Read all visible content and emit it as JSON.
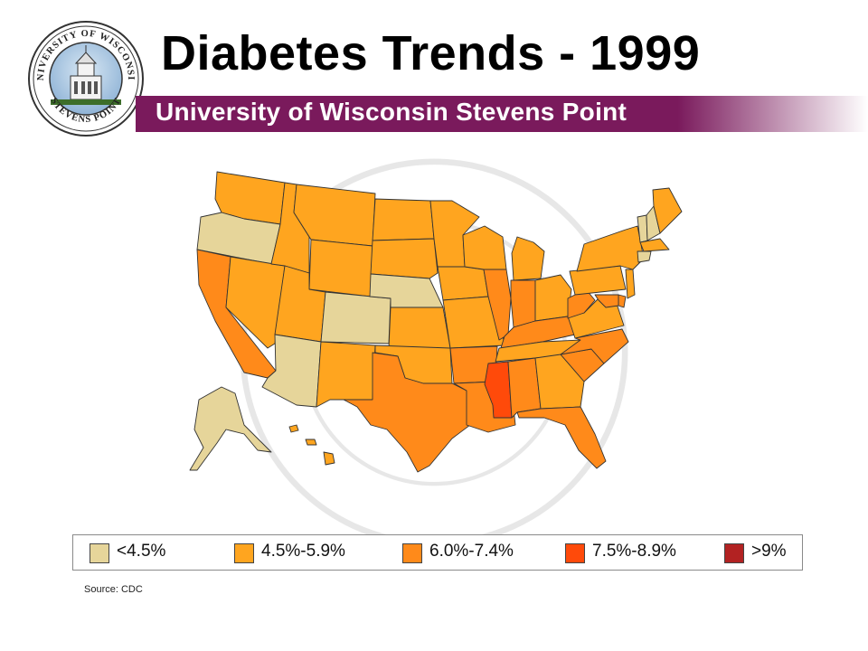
{
  "header": {
    "title": "Diabetes Trends - 1999",
    "subtitle": "University of Wisconsin Stevens Point",
    "seal_text": "UNIVERSITY OF WISCONSIN STEVENS POINT"
  },
  "colors": {
    "band_purple": "#7a1a5c",
    "lt_4_5": "#e6d59a",
    "p4_5_5_9": "#ffa51f",
    "p6_0_7_4": "#ff8a1a",
    "p7_5_8_9": "#ff4a0a",
    "gt_9": "#b22222"
  },
  "legend": {
    "items": [
      {
        "label": "<4.5%",
        "color": "#e6d59a"
      },
      {
        "label": "4.5%-5.9%",
        "color": "#ffa51f"
      },
      {
        "label": "6.0%-7.4%",
        "color": "#ff8a1a"
      },
      {
        "label": "7.5%-8.9%",
        "color": "#ff4a0a"
      },
      {
        "label": ">9%",
        "color": "#b22222"
      }
    ]
  },
  "source": "Source: CDC",
  "map_data": {
    "category_by_state": {
      "WA": "4.5%-5.9%",
      "OR": "<4.5%",
      "CA": "6.0%-7.4%",
      "NV": "4.5%-5.9%",
      "ID": "4.5%-5.9%",
      "MT": "4.5%-5.9%",
      "WY": "4.5%-5.9%",
      "UT": "4.5%-5.9%",
      "AZ": "<4.5%",
      "CO": "<4.5%",
      "NM": "4.5%-5.9%",
      "ND": "4.5%-5.9%",
      "SD": "4.5%-5.9%",
      "NE": "<4.5%",
      "KS": "4.5%-5.9%",
      "OK": "4.5%-5.9%",
      "TX": "6.0%-7.4%",
      "MN": "4.5%-5.9%",
      "IA": "4.5%-5.9%",
      "MO": "4.5%-5.9%",
      "AR": "6.0%-7.4%",
      "LA": "6.0%-7.4%",
      "WI": "4.5%-5.9%",
      "IL": "6.0%-7.4%",
      "MI": "4.5%-5.9%",
      "IN": "6.0%-7.4%",
      "OH": "4.5%-5.9%",
      "KY": "6.0%-7.4%",
      "TN": "4.5%-5.9%",
      "MS": "7.5%-8.9%",
      "AL": "6.0%-7.4%",
      "GA": "4.5%-5.9%",
      "FL": "6.0%-7.4%",
      "SC": "6.0%-7.4%",
      "NC": "6.0%-7.4%",
      "VA": "4.5%-5.9%",
      "WV": "6.0%-7.4%",
      "PA": "4.5%-5.9%",
      "NY": "4.5%-5.9%",
      "VT": "<4.5%",
      "NH": "<4.5%",
      "ME": "4.5%-5.9%",
      "MA": "4.5%-5.9%",
      "CT": "<4.5%",
      "NJ": "4.5%-5.9%",
      "DE": "6.0%-7.4%",
      "MD": "6.0%-7.4%",
      "AK": "<4.5%",
      "HI": "4.5%-5.9%"
    }
  }
}
